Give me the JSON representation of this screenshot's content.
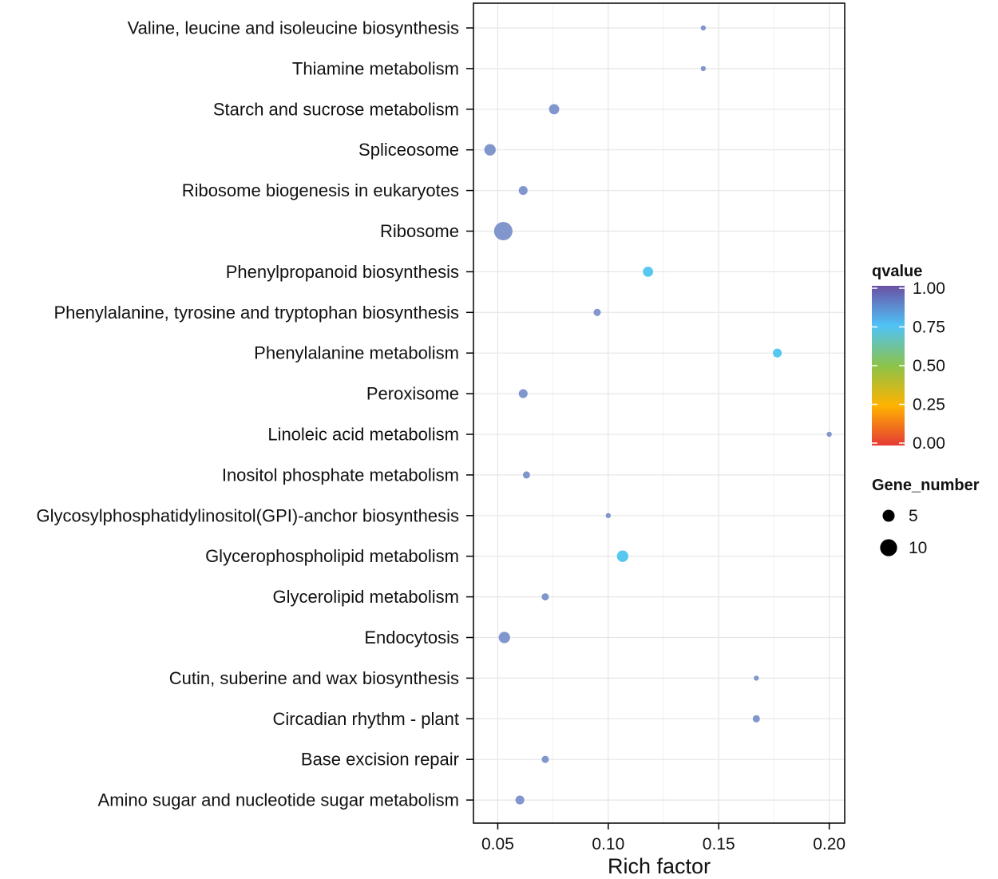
{
  "chart_data": {
    "type": "scatter",
    "title": "",
    "xlabel": "Rich factor",
    "ylabel": "",
    "xlim": [
      0.039,
      0.207
    ],
    "xticks": [
      0.05,
      0.1,
      0.15,
      0.2
    ],
    "xtick_labels": [
      "0.05",
      "0.10",
      "0.15",
      "0.20"
    ],
    "grid": true,
    "categories": [
      "Valine, leucine and isoleucine biosynthesis",
      "Thiamine metabolism",
      "Starch and sucrose metabolism",
      "Spliceosome",
      "Ribosome biogenesis in eukaryotes",
      "Ribosome",
      "Phenylpropanoid biosynthesis",
      "Phenylalanine, tyrosine and tryptophan biosynthesis",
      "Phenylalanine metabolism",
      "Peroxisome",
      "Linoleic acid metabolism",
      "Inositol phosphate metabolism",
      "Glycosylphosphatidylinositol(GPI)-anchor biosynthesis",
      "Glycerophospholipid metabolism",
      "Glycerolipid metabolism",
      "Endocytosis",
      "Cutin, suberine and wax biosynthesis",
      "Circadian rhythm - plant",
      "Base excision repair",
      "Amino sugar and nucleotide sugar metabolism"
    ],
    "points": [
      {
        "pathway": "Valine, leucine and isoleucine biosynthesis",
        "rich_factor": 0.143,
        "gene_number": 1,
        "qvalue": 0.92
      },
      {
        "pathway": "Thiamine metabolism",
        "rich_factor": 0.143,
        "gene_number": 1,
        "qvalue": 0.92
      },
      {
        "pathway": "Starch and sucrose metabolism",
        "rich_factor": 0.0755,
        "gene_number": 4,
        "qvalue": 0.92
      },
      {
        "pathway": "Spliceosome",
        "rich_factor": 0.0465,
        "gene_number": 5,
        "qvalue": 0.92
      },
      {
        "pathway": "Ribosome biogenesis in eukaryotes",
        "rich_factor": 0.0615,
        "gene_number": 3,
        "qvalue": 0.92
      },
      {
        "pathway": "Ribosome",
        "rich_factor": 0.0525,
        "gene_number": 13,
        "qvalue": 0.92
      },
      {
        "pathway": "Phenylpropanoid biosynthesis",
        "rich_factor": 0.118,
        "gene_number": 4,
        "qvalue": 0.7
      },
      {
        "pathway": "Phenylalanine, tyrosine and tryptophan biosynthesis",
        "rich_factor": 0.095,
        "gene_number": 2,
        "qvalue": 0.92
      },
      {
        "pathway": "Phenylalanine metabolism",
        "rich_factor": 0.1765,
        "gene_number": 3,
        "qvalue": 0.7
      },
      {
        "pathway": "Peroxisome",
        "rich_factor": 0.0615,
        "gene_number": 3,
        "qvalue": 0.92
      },
      {
        "pathway": "Linoleic acid metabolism",
        "rich_factor": 0.2,
        "gene_number": 1,
        "qvalue": 0.92
      },
      {
        "pathway": "Inositol phosphate metabolism",
        "rich_factor": 0.063,
        "gene_number": 2,
        "qvalue": 0.92
      },
      {
        "pathway": "Glycosylphosphatidylinositol(GPI)-anchor biosynthesis",
        "rich_factor": 0.1,
        "gene_number": 1,
        "qvalue": 0.92
      },
      {
        "pathway": "Glycerophospholipid metabolism",
        "rich_factor": 0.1065,
        "gene_number": 5,
        "qvalue": 0.7
      },
      {
        "pathway": "Glycerolipid metabolism",
        "rich_factor": 0.0715,
        "gene_number": 2,
        "qvalue": 0.92
      },
      {
        "pathway": "Endocytosis",
        "rich_factor": 0.053,
        "gene_number": 5,
        "qvalue": 0.92
      },
      {
        "pathway": "Cutin, suberine and wax biosynthesis",
        "rich_factor": 0.167,
        "gene_number": 1,
        "qvalue": 0.92
      },
      {
        "pathway": "Circadian rhythm - plant",
        "rich_factor": 0.167,
        "gene_number": 2,
        "qvalue": 0.92
      },
      {
        "pathway": "Base excision repair",
        "rich_factor": 0.0715,
        "gene_number": 2,
        "qvalue": 0.92
      },
      {
        "pathway": "Amino sugar and nucleotide sugar metabolism",
        "rich_factor": 0.06,
        "gene_number": 3,
        "qvalue": 0.92
      }
    ],
    "color_legend": {
      "title": "qvalue",
      "range": [
        0,
        1
      ],
      "ticks": [
        "1.00",
        "0.75",
        "0.50",
        "0.25",
        "0.00"
      ],
      "tick_values": [
        1.0,
        0.75,
        0.5,
        0.25,
        0.0
      ],
      "stops": [
        {
          "value": 1.0,
          "color": "#6a51a3"
        },
        {
          "value": 0.75,
          "color": "#4fc3f7"
        },
        {
          "value": 0.5,
          "color": "#8bc34a"
        },
        {
          "value": 0.25,
          "color": "#ffb300"
        },
        {
          "value": 0.0,
          "color": "#e53935"
        }
      ]
    },
    "size_legend": {
      "title": "Gene_number",
      "entries": [
        {
          "label": "5",
          "value": 5
        },
        {
          "label": "10",
          "value": 10
        }
      ]
    },
    "point_color": "#8096cc"
  }
}
